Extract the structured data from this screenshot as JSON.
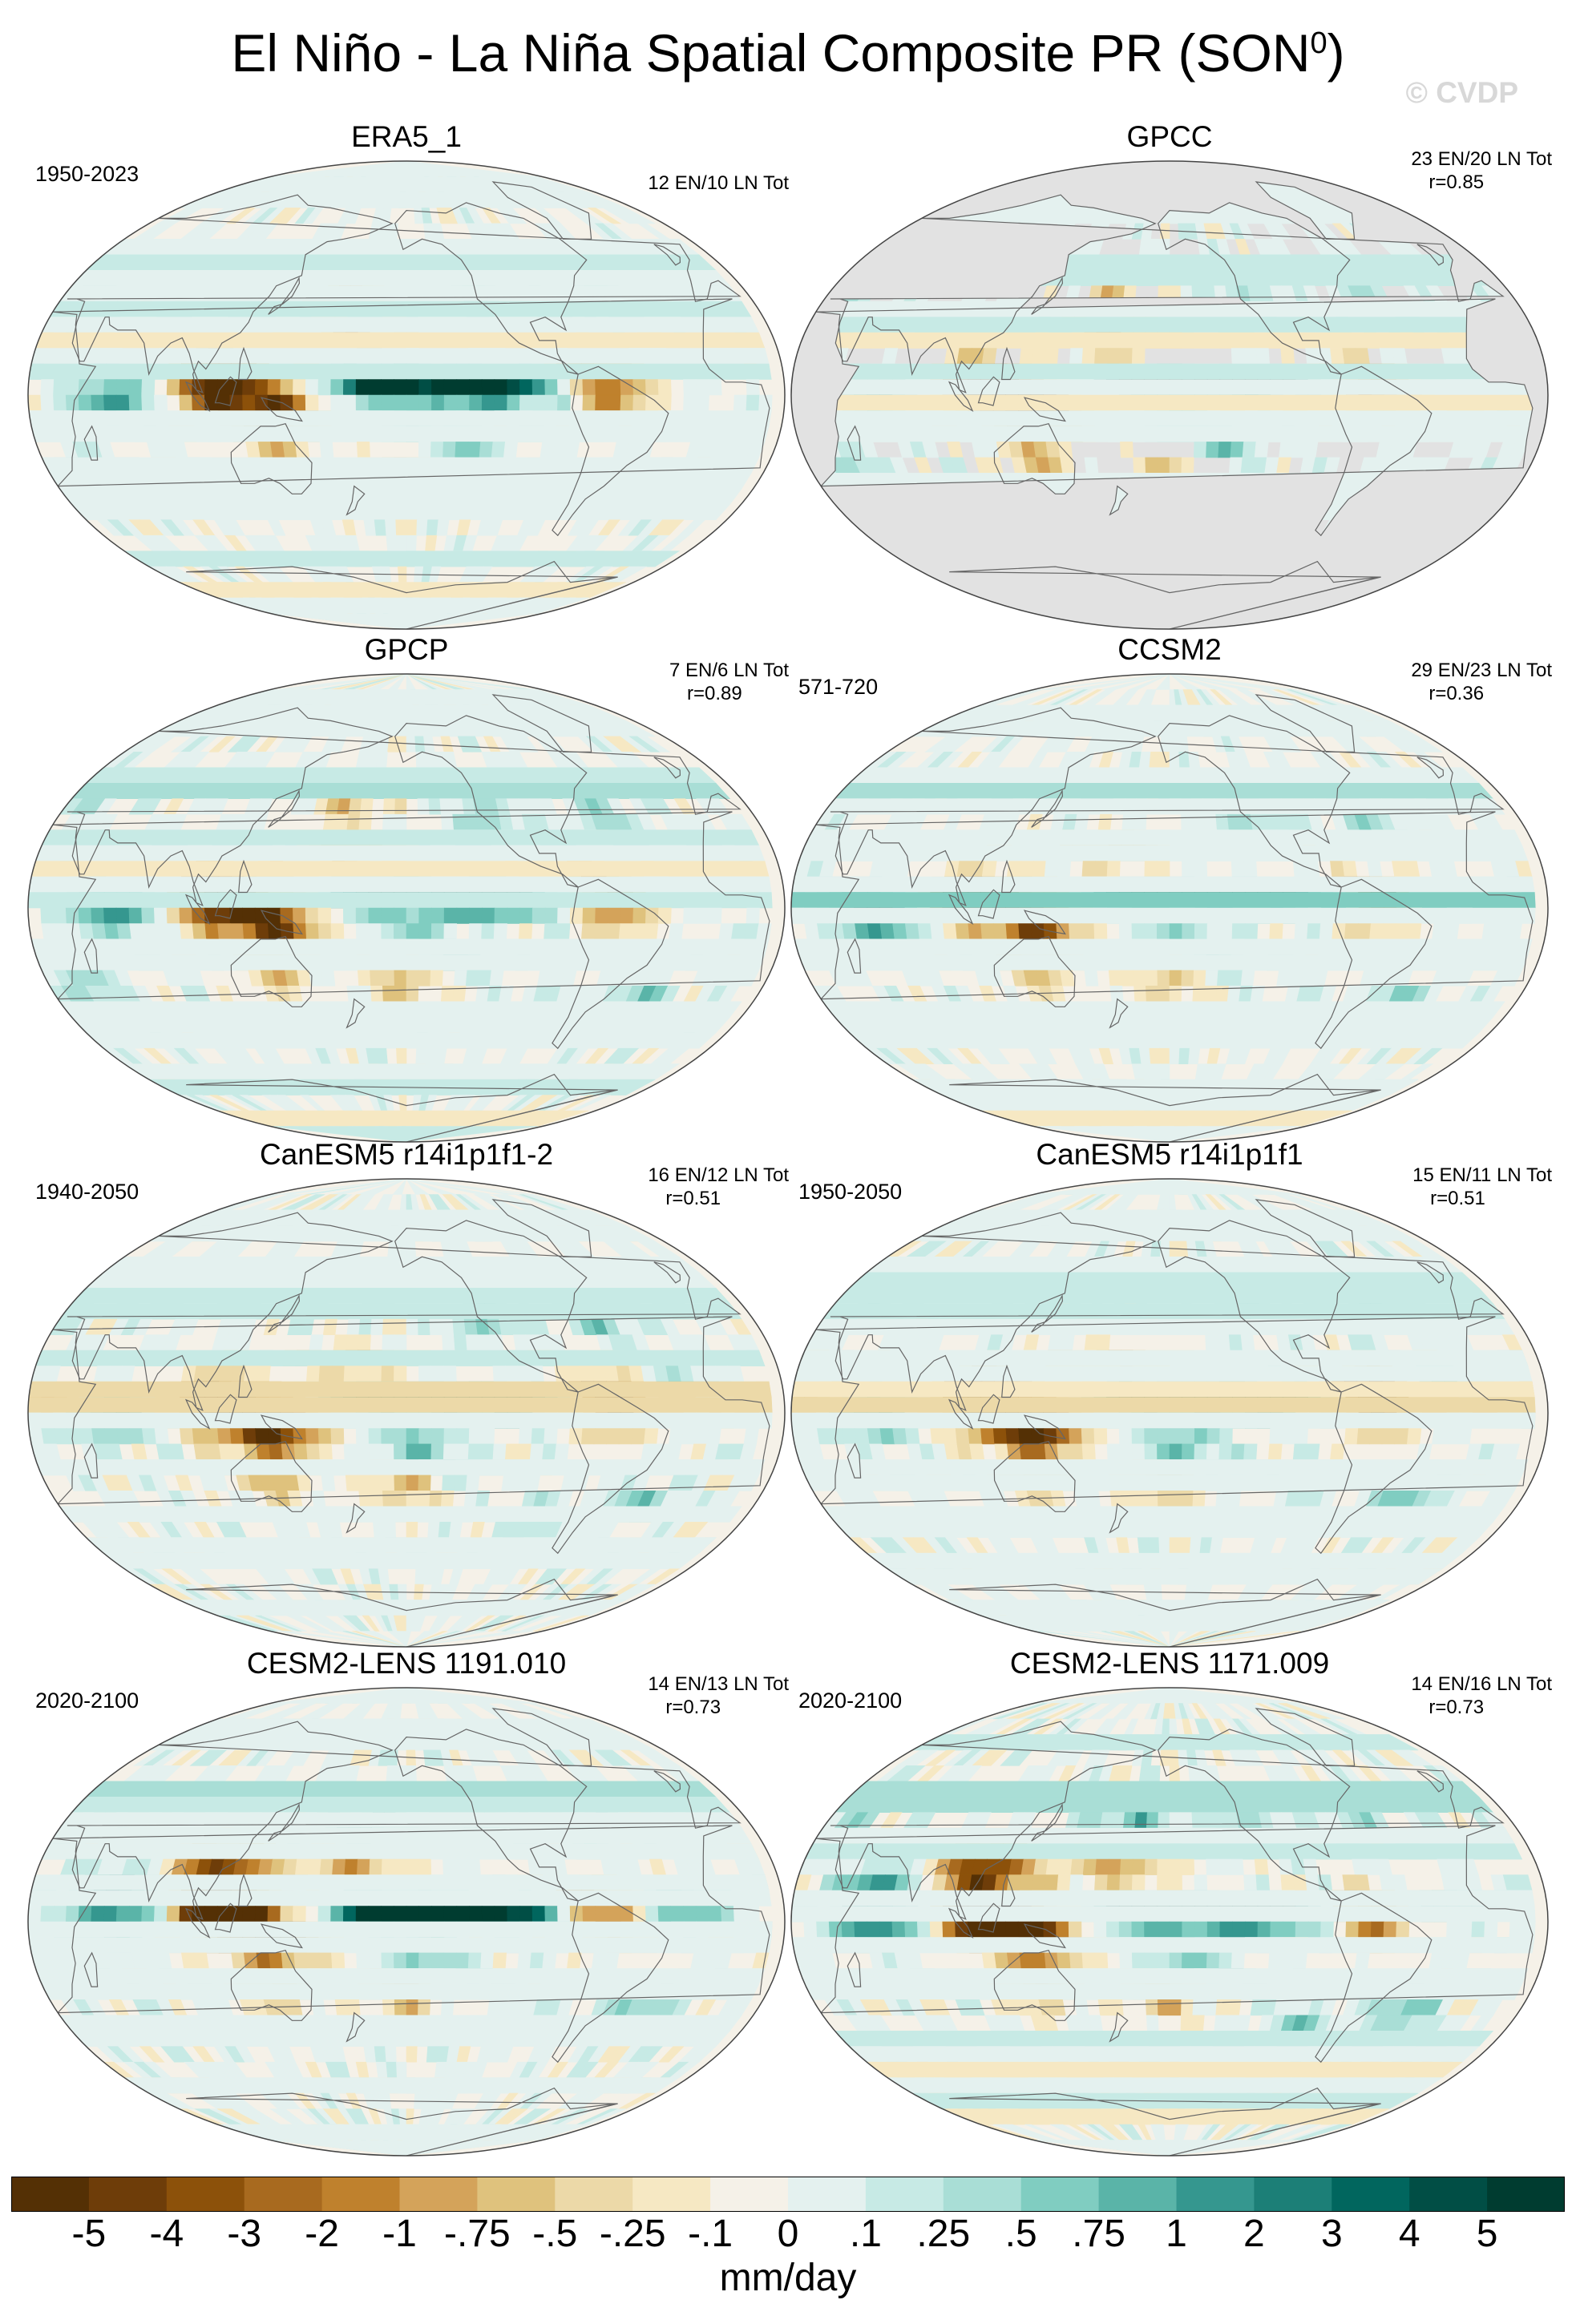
{
  "title": {
    "main": "El Niño - La Niña Spatial Composite PR (SON",
    "superscript": "0",
    "close": ")"
  },
  "watermark": "© CVDP",
  "colors": {
    "land_mask": "#e2e2e2",
    "coastline": "#666666"
  },
  "chart_data": {
    "type": "heatmap",
    "projection": "Robinson (global, Pacific-centred)",
    "variable": "PR",
    "season": "SON0",
    "units": "mm/day",
    "colorbar": {
      "labels": [
        "-5",
        "-4",
        "-3",
        "-2",
        "-1",
        "-.75",
        "-.5",
        "-.25",
        "-.1",
        "0",
        ".1",
        ".25",
        ".5",
        ".75",
        "1",
        "2",
        "3",
        "4",
        "5"
      ],
      "colors": [
        "#543005",
        "#6e3d09",
        "#8c510a",
        "#a86a1f",
        "#bf812d",
        "#d4a35a",
        "#dfc27d",
        "#ecd9a8",
        "#f6e8c3",
        "#f5f1e8",
        "#e4f1ef",
        "#c7eae5",
        "#a9ded6",
        "#80cdc1",
        "#5ab4a8",
        "#35978f",
        "#1c7f77",
        "#01665e",
        "#014e45",
        "#003c30"
      ]
    },
    "panels": [
      {
        "name": "ERA5_1",
        "period": "1950-2023",
        "stats": "12 EN/10 LN Tot",
        "r": "",
        "land_only": false,
        "style": "obs"
      },
      {
        "name": "GPCC",
        "period": "",
        "stats": "23 EN/20 LN Tot",
        "r": "r=0.85",
        "land_only": true,
        "style": "obs"
      },
      {
        "name": "GPCP",
        "period": "",
        "stats": "7 EN/6 LN Tot",
        "r": "r=0.89",
        "land_only": false,
        "style": "obs"
      },
      {
        "name": "CCSM2",
        "period": "571-720",
        "stats": "29 EN/23 LN Tot",
        "r": "r=0.36",
        "land_only": false,
        "style": "model_b"
      },
      {
        "name": "CanESM5 r14i1p1f1-2",
        "period": "1940-2050",
        "stats": "16 EN/12 LN Tot",
        "r": "r=0.51",
        "land_only": false,
        "style": "model_a"
      },
      {
        "name": "CanESM5 r14i1p1f1",
        "period": "1950-2050",
        "stats": "15 EN/11 LN Tot",
        "r": "r=0.51",
        "land_only": false,
        "style": "model_a"
      },
      {
        "name": "CESM2-LENS 1191.010",
        "period": "2020-2100",
        "stats": "14 EN/13 LN Tot",
        "r": "r=0.73",
        "land_only": false,
        "style": "model_c"
      },
      {
        "name": "CESM2-LENS 1171.009",
        "period": "2020-2100",
        "stats": "14 EN/16 LN Tot",
        "r": "r=0.73",
        "land_only": false,
        "style": "model_c"
      }
    ]
  }
}
